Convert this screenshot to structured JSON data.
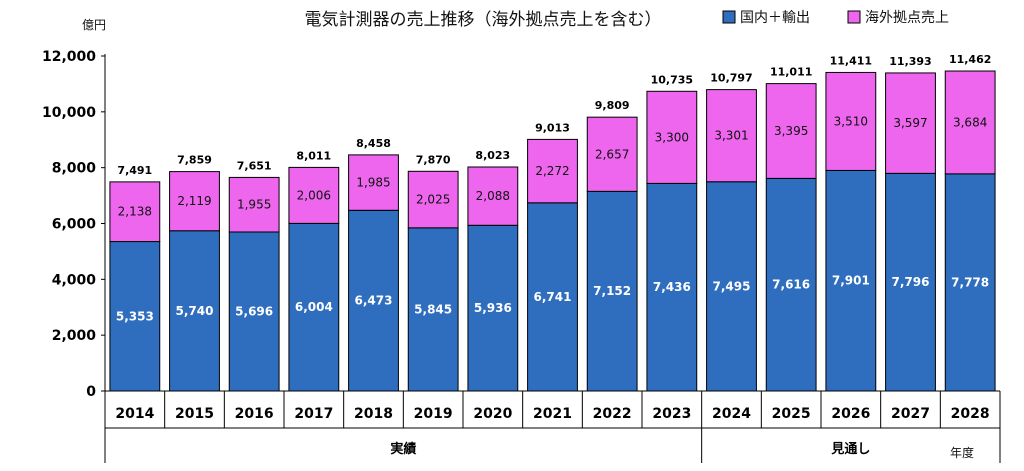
{
  "chart_data": {
    "type": "bar",
    "stacked": true,
    "title": "電気計測器の売上推移（海外拠点売上を含む）",
    "yunit": "億円",
    "xunit": "年度",
    "ylim": [
      0,
      12000
    ],
    "yticks": [
      0,
      2000,
      4000,
      6000,
      8000,
      10000,
      12000
    ],
    "ytick_labels": [
      "0",
      "2,000",
      "4,000",
      "6,000",
      "8,000",
      "10,000",
      "12,000"
    ],
    "categories": [
      "2014",
      "2015",
      "2016",
      "2017",
      "2018",
      "2019",
      "2020",
      "2021",
      "2022",
      "2023",
      "2024",
      "2025",
      "2026",
      "2027",
      "2028"
    ],
    "series": [
      {
        "name": "国内＋輸出",
        "color": "#2f6ebf",
        "values": [
          5353,
          5740,
          5696,
          6004,
          6473,
          5845,
          5936,
          6741,
          7152,
          7436,
          7495,
          7616,
          7901,
          7796,
          7778
        ],
        "labels": [
          "5,353",
          "5,740",
          "5,696",
          "6,004",
          "6,473",
          "5,845",
          "5,936",
          "6,741",
          "7,152",
          "7,436",
          "7,495",
          "7,616",
          "7,901",
          "7,796",
          "7,778"
        ]
      },
      {
        "name": "海外拠点売上",
        "color": "#ee66ee",
        "values": [
          2138,
          2119,
          1955,
          2006,
          1985,
          2025,
          2088,
          2272,
          2657,
          3300,
          3301,
          3395,
          3510,
          3597,
          3684
        ],
        "labels": [
          "2,138",
          "2,119",
          "1,955",
          "2,006",
          "1,985",
          "2,025",
          "2,088",
          "2,272",
          "2,657",
          "3,300",
          "3,301",
          "3,395",
          "3,510",
          "3,597",
          "3,684"
        ]
      }
    ],
    "totals": [
      7491,
      7859,
      7651,
      8011,
      8458,
      7870,
      8023,
      9013,
      9809,
      10735,
      10797,
      11011,
      11411,
      11393,
      11462
    ],
    "total_labels": [
      "7,491",
      "7,859",
      "7,651",
      "8,011",
      "8,458",
      "7,870",
      "8,023",
      "9,013",
      "9,809",
      "10,735",
      "10,797",
      "11,011",
      "11,411",
      "11,393",
      "11,462"
    ],
    "groups": [
      {
        "label": "実績",
        "from": 0,
        "to": 9
      },
      {
        "label": "見通し",
        "from": 10,
        "to": 14
      }
    ],
    "legend_position": "top-right",
    "grid": false
  }
}
